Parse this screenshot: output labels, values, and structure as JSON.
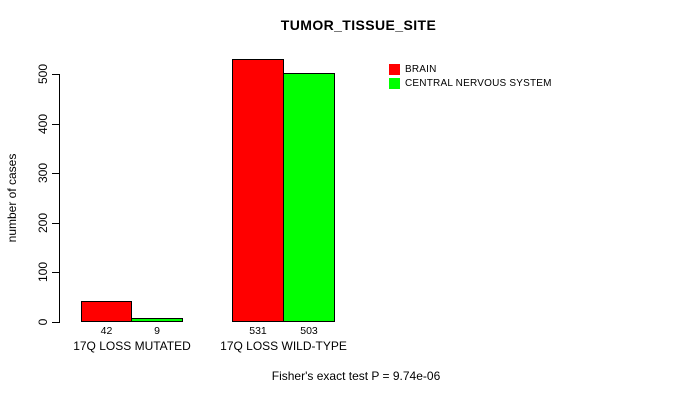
{
  "chart_data": {
    "type": "bar",
    "title": "TUMOR_TISSUE_SITE",
    "ylabel": "number of cases",
    "xlabel": "",
    "ylim": [
      0,
      500
    ],
    "yticks": [
      0,
      100,
      200,
      300,
      400,
      500
    ],
    "categories": [
      "17Q LOSS MUTATED",
      "17Q LOSS WILD-TYPE"
    ],
    "series": [
      {
        "name": "BRAIN",
        "color": "#ff0000",
        "values": [
          42,
          531
        ]
      },
      {
        "name": "CENTRAL NERVOUS SYSTEM",
        "color": "#00ff00",
        "values": [
          9,
          503
        ]
      }
    ],
    "value_labels": [
      [
        "42",
        "9"
      ],
      [
        "531",
        "503"
      ]
    ],
    "legend_position": "top-right",
    "grid": false,
    "bar_border_color": "#000000",
    "footnote": "Fisher's exact test P = 9.74e-06"
  }
}
